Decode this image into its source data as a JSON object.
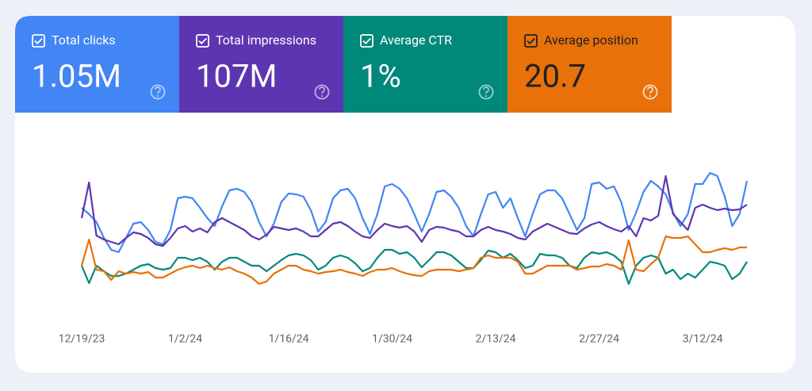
{
  "chart_data": {
    "type": "line",
    "categories": [
      "12/19/23",
      null,
      null,
      null,
      null,
      null,
      null,
      null,
      null,
      null,
      null,
      null,
      null,
      null,
      "1/2/24",
      null,
      null,
      null,
      null,
      null,
      null,
      null,
      null,
      null,
      null,
      null,
      null,
      null,
      "1/16/24",
      null,
      null,
      null,
      null,
      null,
      null,
      null,
      null,
      null,
      null,
      null,
      null,
      null,
      "1/30/24",
      null,
      null,
      null,
      null,
      null,
      null,
      null,
      null,
      null,
      null,
      null,
      null,
      null,
      "2/13/24",
      null,
      null,
      null,
      null,
      null,
      null,
      null,
      null,
      null,
      null,
      null,
      null,
      null,
      "2/27/24",
      null,
      null,
      null,
      null,
      null,
      null,
      null,
      null,
      null,
      null,
      null,
      null,
      null,
      "3/12/24",
      null,
      null,
      null,
      null,
      null,
      null
    ],
    "ylim": [
      0,
      200
    ],
    "series": [
      {
        "name": "Total clicks",
        "total": "1.05M",
        "color": "#4285f4",
        "values": [
          138,
          130,
          120,
          100,
          85,
          82,
          100,
          118,
          120,
          110,
          95,
          92,
          110,
          150,
          152,
          150,
          138,
          125,
          115,
          140,
          160,
          162,
          158,
          145,
          120,
          102,
          118,
          145,
          156,
          155,
          152,
          135,
          108,
          120,
          150,
          160,
          162,
          150,
          125,
          105,
          130,
          165,
          168,
          162,
          150,
          130,
          108,
          130,
          158,
          160,
          152,
          138,
          115,
          102,
          130,
          155,
          158,
          138,
          150,
          125,
          102,
          130,
          155,
          160,
          160,
          150,
          130,
          110,
          125,
          168,
          170,
          162,
          165,
          145,
          110,
          132,
          158,
          172,
          165,
          155,
          132,
          115,
          130,
          168,
          168,
          182,
          178,
          152,
          115,
          130,
          172
        ]
      },
      {
        "name": "Total impressions",
        "total": "107M",
        "color": "#5e35b1",
        "values": [
          125,
          170,
          103,
          98,
          95,
          92,
          100,
          107,
          105,
          100,
          92,
          90,
          100,
          112,
          115,
          108,
          112,
          107,
          120,
          125,
          120,
          115,
          110,
          102,
          98,
          104,
          114,
          112,
          110,
          112,
          108,
          102,
          102,
          110,
          118,
          120,
          115,
          108,
          102,
          100,
          110,
          118,
          115,
          113,
          115,
          108,
          95,
          110,
          114,
          113,
          110,
          108,
          102,
          102,
          110,
          114,
          110,
          108,
          105,
          100,
          98,
          108,
          113,
          118,
          114,
          110,
          106,
          105,
          112,
          117,
          120,
          115,
          111,
          108,
          115,
          102,
          125,
          122,
          128,
          178,
          130,
          120,
          110,
          138,
          142,
          138,
          135,
          137,
          135,
          136,
          142
        ]
      },
      {
        "name": "Average CTR",
        "total": "1%",
        "color": "#00897b",
        "values": [
          65,
          43,
          65,
          58,
          52,
          52,
          55,
          60,
          65,
          67,
          62,
          60,
          62,
          75,
          75,
          72,
          75,
          70,
          60,
          70,
          75,
          75,
          70,
          65,
          65,
          58,
          65,
          72,
          78,
          80,
          78,
          72,
          60,
          65,
          75,
          78,
          75,
          68,
          58,
          62,
          75,
          85,
          85,
          80,
          82,
          75,
          63,
          72,
          82,
          82,
          78,
          70,
          62,
          62,
          72,
          84,
          82,
          75,
          80,
          72,
          62,
          65,
          80,
          78,
          78,
          75,
          65,
          62,
          75,
          82,
          80,
          82,
          78,
          70,
          42,
          65,
          75,
          78,
          75,
          55,
          60,
          48,
          55,
          50,
          60,
          70,
          68,
          65,
          48,
          55,
          70
        ]
      },
      {
        "name": "Average position",
        "total": "20.7",
        "color": "#e8710a",
        "values": [
          65,
          98,
          60,
          58,
          47,
          58,
          55,
          57,
          55,
          57,
          50,
          50,
          55,
          60,
          63,
          65,
          62,
          65,
          62,
          60,
          63,
          58,
          55,
          50,
          42,
          45,
          55,
          60,
          65,
          65,
          60,
          58,
          55,
          57,
          58,
          60,
          57,
          55,
          52,
          57,
          60,
          60,
          62,
          58,
          55,
          53,
          52,
          58,
          60,
          60,
          60,
          58,
          60,
          62,
          75,
          78,
          75,
          75,
          75,
          70,
          55,
          55,
          60,
          65,
          65,
          65,
          65,
          60,
          62,
          64,
          64,
          67,
          65,
          60,
          97,
          60,
          58,
          67,
          75,
          102,
          100,
          100,
          102,
          92,
          82,
          82,
          85,
          87,
          85,
          88,
          88
        ]
      }
    ]
  }
}
